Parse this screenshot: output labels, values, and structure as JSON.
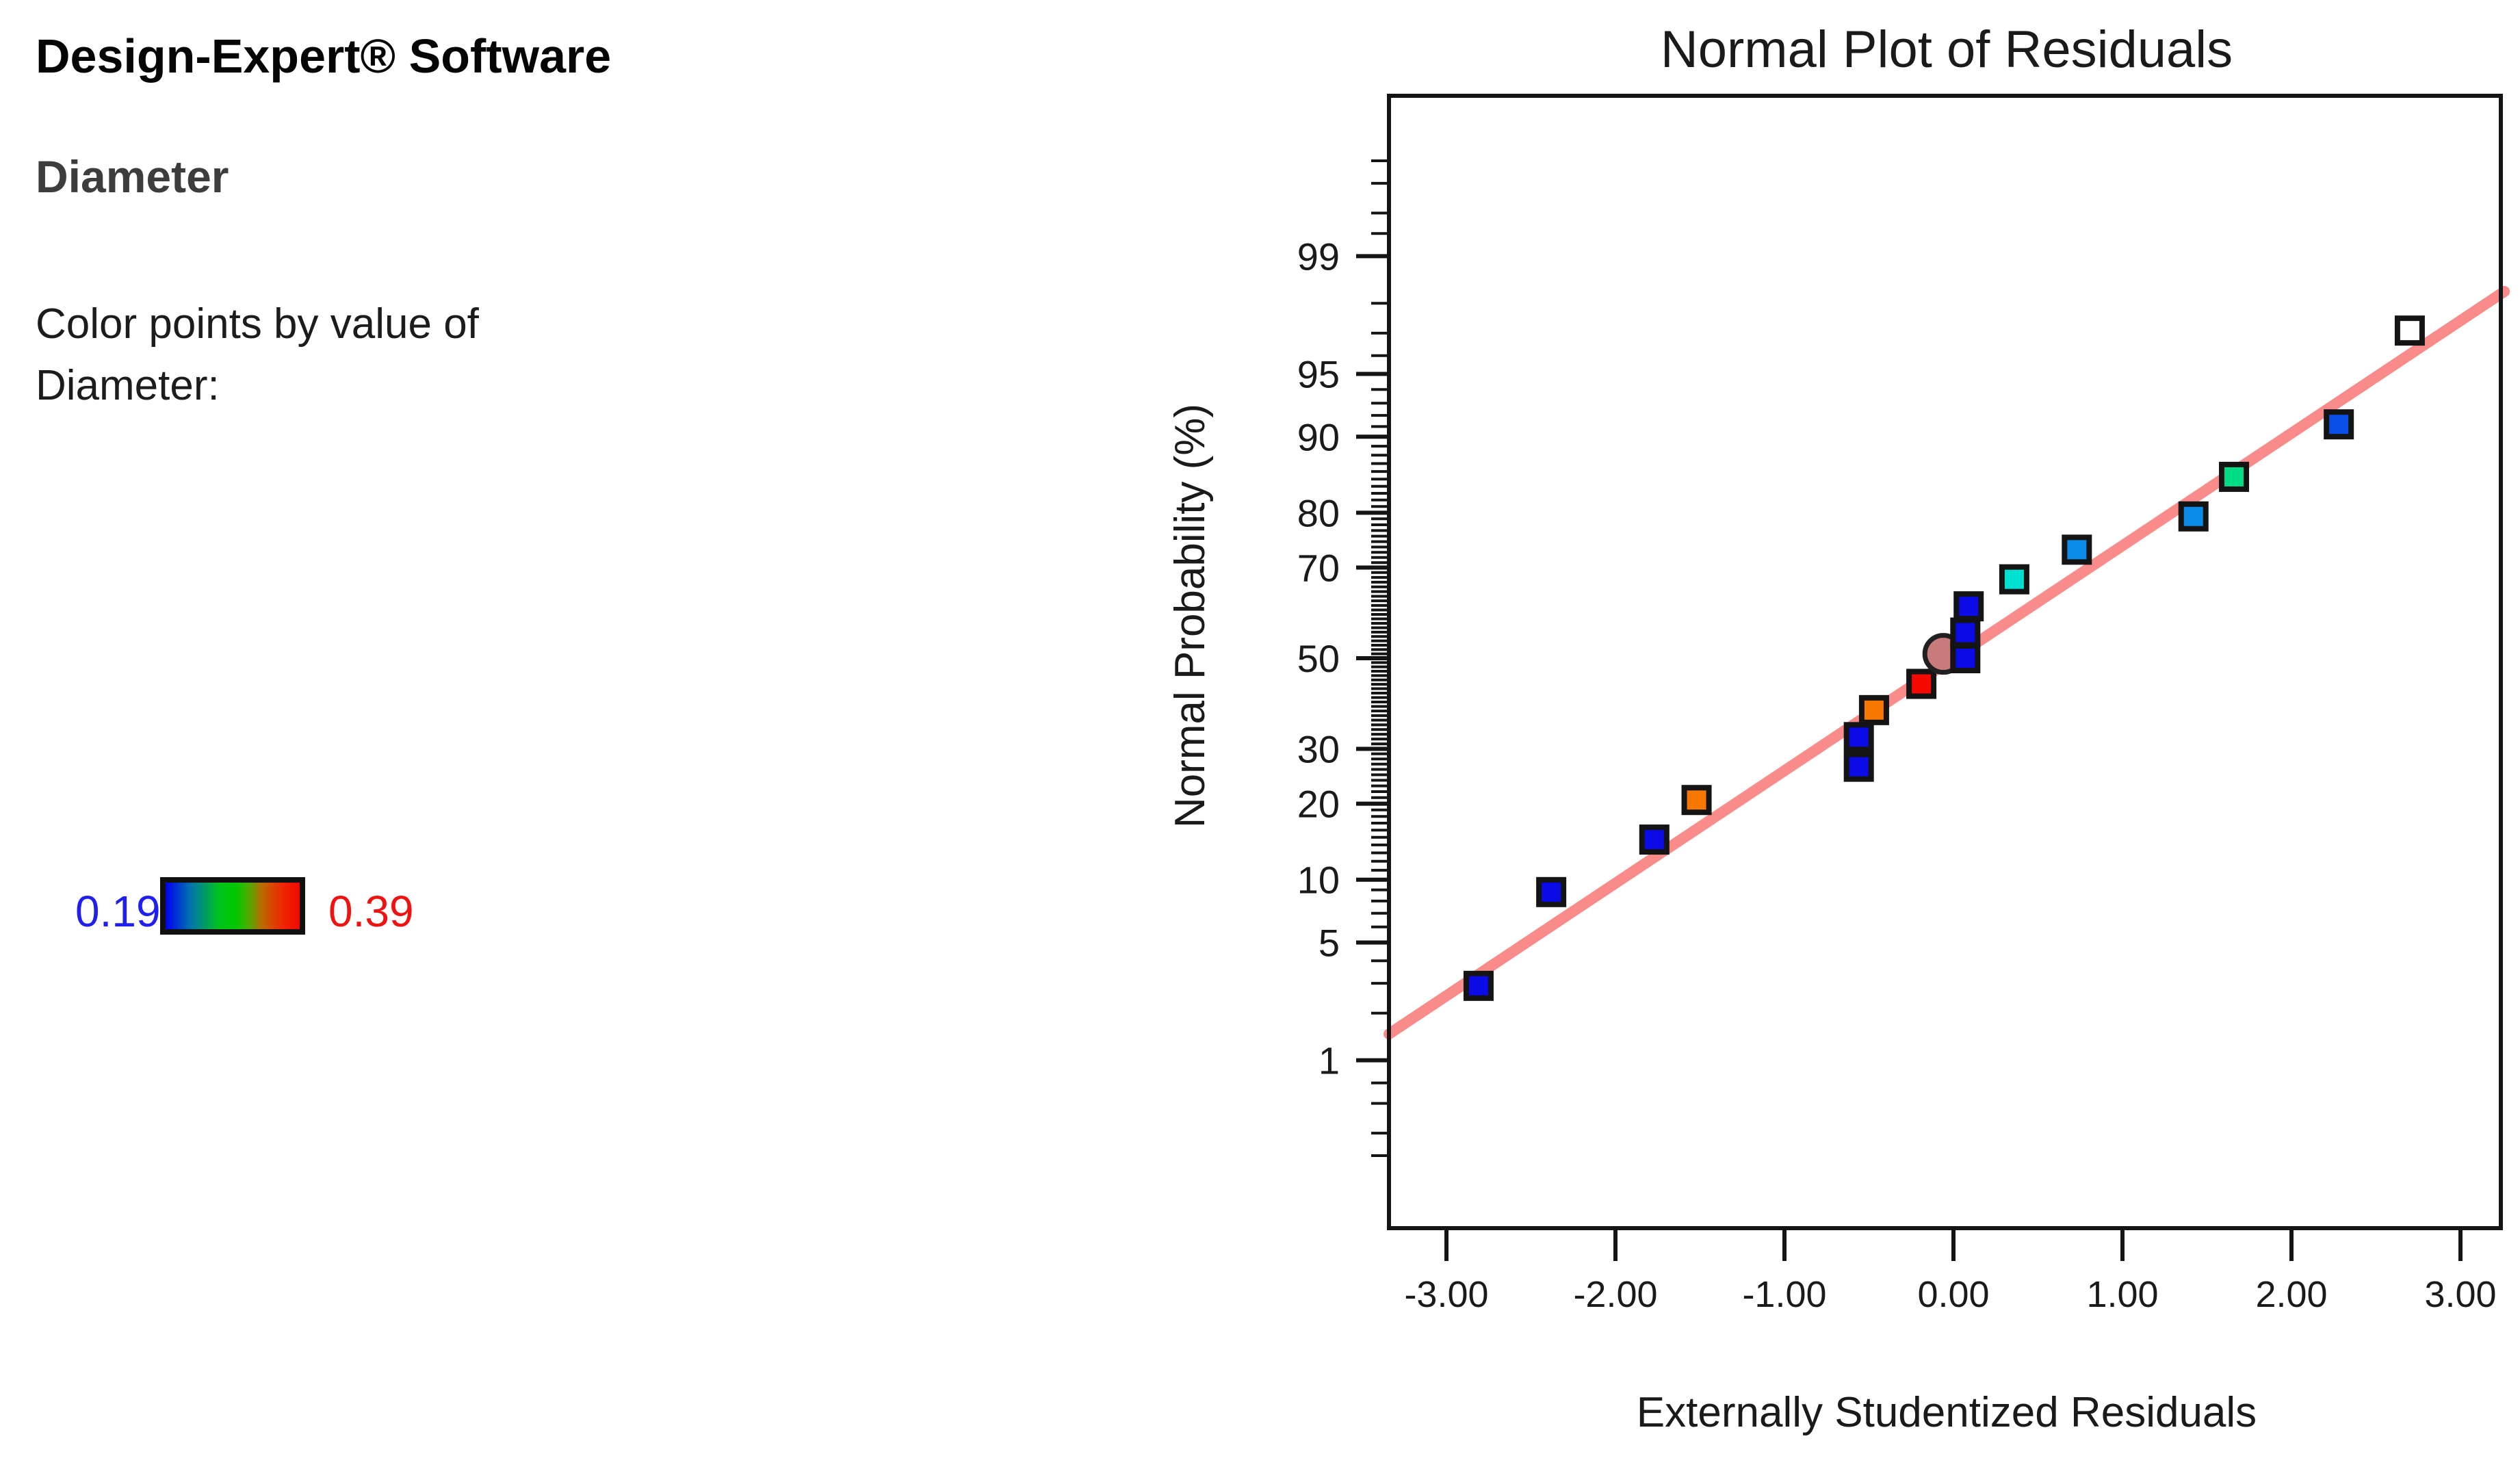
{
  "panel": {
    "app_title": "Design-Expert® Software",
    "response_name": "Diameter",
    "caption_line1": "Color points by value of",
    "caption_line2": "Diameter:",
    "legend": {
      "min_value": "0.19",
      "max_value": "0.39",
      "min_color": "#1f1ff0",
      "max_color": "#f01111",
      "gradient_colors": [
        "#0000f0",
        "#00c800",
        "#f00800"
      ]
    }
  },
  "chart_data": {
    "type": "scatter",
    "title": "Normal Plot of Residuals",
    "xlabel": "Externally Studentized Residuals",
    "ylabel": "Normal Probability (%)",
    "x_scale": "linear",
    "y_scale": "normal-probability",
    "xlim": [
      -3.34,
      3.26
    ],
    "ylim_percent": [
      0.05,
      99.95
    ],
    "x_ticks": [
      {
        "value": -3,
        "label": "-3.00"
      },
      {
        "value": -2,
        "label": "-2.00"
      },
      {
        "value": -1,
        "label": "-1.00"
      },
      {
        "value": 0,
        "label": "0.00"
      },
      {
        "value": 1,
        "label": "1.00"
      },
      {
        "value": 2,
        "label": "2.00"
      },
      {
        "value": 3,
        "label": "3.00"
      }
    ],
    "y_ticks_labeled": [
      {
        "value": 1,
        "label": "1"
      },
      {
        "value": 5,
        "label": "5"
      },
      {
        "value": 10,
        "label": "10"
      },
      {
        "value": 20,
        "label": "20"
      },
      {
        "value": 30,
        "label": "30"
      },
      {
        "value": 50,
        "label": "50"
      },
      {
        "value": 70,
        "label": "70"
      },
      {
        "value": 80,
        "label": "80"
      },
      {
        "value": 90,
        "label": "90"
      },
      {
        "value": 95,
        "label": "95"
      },
      {
        "value": 99,
        "label": "99"
      }
    ],
    "y_minor_ticks_extra": [
      0.2,
      0.3,
      0.5,
      0.7,
      99.3,
      99.5,
      99.7,
      99.8
    ],
    "grid": false,
    "fit_line": {
      "slope_z_per_unit": 0.651,
      "intercept_z": 0,
      "color": "#f98b8b",
      "width": 16
    },
    "points": [
      {
        "x": -2.81,
        "p": 2.9,
        "color": "#0b0be8",
        "shape": "square"
      },
      {
        "x": -2.38,
        "p": 8.8,
        "color": "#0b0be8",
        "shape": "square"
      },
      {
        "x": -1.77,
        "p": 14.7,
        "color": "#0b0be8",
        "shape": "square"
      },
      {
        "x": -1.52,
        "p": 20.6,
        "color": "#f87800",
        "shape": "square"
      },
      {
        "x": -0.56,
        "p": 26.5,
        "color": "#0b0be8",
        "shape": "square"
      },
      {
        "x": -0.56,
        "p": 32.4,
        "color": "#0b0be8",
        "shape": "square"
      },
      {
        "x": -0.47,
        "p": 38.2,
        "color": "#f87800",
        "shape": "square"
      },
      {
        "x": -0.19,
        "p": 44.1,
        "color": "#f50800",
        "shape": "square"
      },
      {
        "x": -0.06,
        "p": 51.0,
        "color": "#c97b7b",
        "shape": "circle"
      },
      {
        "x": 0.07,
        "p": 50.0,
        "color": "#0b0be8",
        "shape": "square"
      },
      {
        "x": 0.07,
        "p": 55.9,
        "color": "#0b0be8",
        "shape": "square"
      },
      {
        "x": 0.09,
        "p": 61.8,
        "color": "#0b0be8",
        "shape": "square"
      },
      {
        "x": 0.36,
        "p": 67.6,
        "color": "#00e0d0",
        "shape": "square"
      },
      {
        "x": 0.73,
        "p": 73.5,
        "color": "#0a8ce8",
        "shape": "square"
      },
      {
        "x": 1.42,
        "p": 79.4,
        "color": "#0a8ce8",
        "shape": "square"
      },
      {
        "x": 1.66,
        "p": 85.3,
        "color": "#00dc86",
        "shape": "square"
      },
      {
        "x": 2.28,
        "p": 91.2,
        "color": "#0a50e6",
        "shape": "square"
      },
      {
        "x": 2.7,
        "p": 97.1,
        "color": "#ffffff",
        "shape": "square"
      }
    ]
  }
}
